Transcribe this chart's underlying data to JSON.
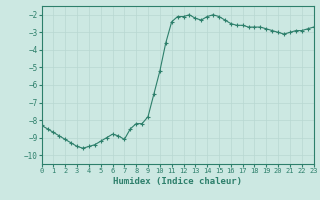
{
  "x": [
    0,
    0.5,
    1,
    1.5,
    2,
    2.5,
    3,
    3.5,
    4,
    4.5,
    5,
    5.5,
    6,
    6.5,
    7,
    7.5,
    8,
    8.5,
    9,
    9.5,
    10,
    10.5,
    11,
    11.5,
    12,
    12.5,
    13,
    13.5,
    14,
    14.5,
    15,
    15.5,
    16,
    16.5,
    17,
    17.5,
    18,
    18.5,
    19,
    19.5,
    20,
    20.5,
    21,
    21.5,
    22,
    22.5,
    23
  ],
  "y": [
    -8.3,
    -8.5,
    -8.7,
    -8.9,
    -9.1,
    -9.3,
    -9.5,
    -9.6,
    -9.5,
    -9.4,
    -9.2,
    -9.0,
    -8.8,
    -8.9,
    -9.1,
    -8.5,
    -8.2,
    -8.2,
    -7.8,
    -6.5,
    -5.2,
    -3.6,
    -2.4,
    -2.1,
    -2.1,
    -2.0,
    -2.2,
    -2.3,
    -2.1,
    -2.0,
    -2.1,
    -2.3,
    -2.5,
    -2.6,
    -2.6,
    -2.7,
    -2.7,
    -2.7,
    -2.8,
    -2.9,
    -3.0,
    -3.1,
    -3.0,
    -2.9,
    -2.9,
    -2.8,
    -2.7
  ],
  "xlabel": "Humidex (Indice chaleur)",
  "xlim": [
    0,
    23
  ],
  "ylim": [
    -10.5,
    -1.5
  ],
  "yticks": [
    -10,
    -9,
    -8,
    -7,
    -6,
    -5,
    -4,
    -3,
    -2
  ],
  "xticks": [
    0,
    1,
    2,
    3,
    4,
    5,
    6,
    7,
    8,
    9,
    10,
    11,
    12,
    13,
    14,
    15,
    16,
    17,
    18,
    19,
    20,
    21,
    22,
    23
  ],
  "line_color": "#2d7f6b",
  "marker_color": "#2d7f6b",
  "bg_color": "#cce8e2",
  "grid_color": "#b8d8d2",
  "axis_color": "#2d7f6b",
  "tick_color": "#2d7f6b",
  "xlabel_color": "#2d7f6b",
  "marker": "+",
  "linewidth": 0.8,
  "markersize": 3.5
}
